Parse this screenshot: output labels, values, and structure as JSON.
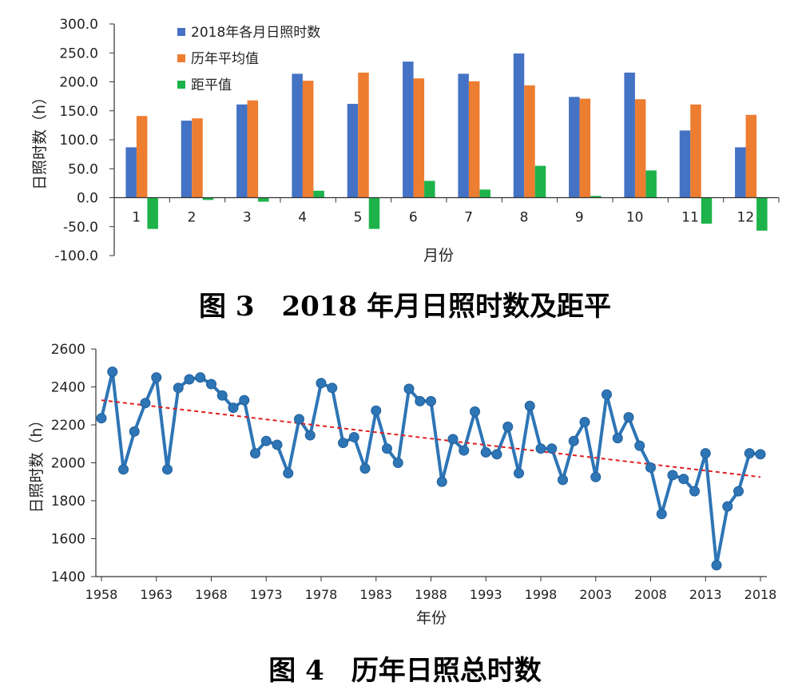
{
  "figures": {
    "fig3_caption": "图 3　2018 年月日照时数及距平",
    "fig4_caption": "图 4　历年日照总时数"
  },
  "colors": {
    "bar_2018": "#4472C4",
    "bar_avg": "#ED7D31",
    "bar_anomaly": "#1DB34A",
    "line": "#2E75B6",
    "trend": "#E02020"
  },
  "chart_data": [
    {
      "type": "bar",
      "title": "",
      "xlabel": "月份",
      "ylabel": "日照时数（h）",
      "ylim": [
        -100,
        300
      ],
      "yticks": [
        "300.0",
        "250.0",
        "200.0",
        "150.0",
        "100.0",
        "50.0",
        "0.0",
        "-50.0",
        "-100.0"
      ],
      "ytick_values": [
        300,
        250,
        200,
        150,
        100,
        50,
        0,
        -50,
        -100
      ],
      "categories": [
        "1",
        "2",
        "3",
        "4",
        "5",
        "6",
        "7",
        "8",
        "9",
        "10",
        "11",
        "12"
      ],
      "legend_position": "top-left",
      "series": [
        {
          "name": "2018年各月日照时数",
          "values": [
            87,
            133,
            161,
            214,
            162,
            235,
            214,
            249,
            174,
            216,
            116,
            87
          ]
        },
        {
          "name": "历年平均值",
          "values": [
            141,
            137,
            168,
            202,
            216,
            206,
            201,
            194,
            171,
            170,
            161,
            143
          ]
        },
        {
          "name": "距平值",
          "values": [
            -54,
            -4,
            -7,
            12,
            -54,
            29,
            14,
            55,
            3,
            47,
            -45,
            -57
          ]
        }
      ]
    },
    {
      "type": "line",
      "title": "",
      "xlabel": "年份",
      "ylabel": "日照时数（h）",
      "ylim": [
        1400,
        2600
      ],
      "yticks": [
        "2600",
        "2400",
        "2200",
        "2000",
        "1800",
        "1600",
        "1400"
      ],
      "ytick_values": [
        2600,
        2400,
        2200,
        2000,
        1800,
        1600,
        1400
      ],
      "xticks": [
        "1958",
        "1963",
        "1968",
        "1973",
        "1978",
        "1983",
        "1988",
        "1993",
        "1998",
        "2003",
        "2008",
        "2013",
        "2018"
      ],
      "xtick_values": [
        1958,
        1963,
        1968,
        1973,
        1978,
        1983,
        1988,
        1993,
        1998,
        2003,
        2008,
        2013,
        2018
      ],
      "x": [
        1958,
        1959,
        1960,
        1961,
        1962,
        1963,
        1964,
        1965,
        1966,
        1967,
        1968,
        1969,
        1970,
        1971,
        1972,
        1973,
        1974,
        1975,
        1976,
        1977,
        1978,
        1979,
        1980,
        1981,
        1982,
        1983,
        1984,
        1985,
        1986,
        1987,
        1988,
        1989,
        1990,
        1991,
        1992,
        1993,
        1994,
        1995,
        1996,
        1997,
        1998,
        1999,
        2000,
        2001,
        2002,
        2003,
        2004,
        2005,
        2006,
        2007,
        2008,
        2009,
        2010,
        2011,
        2012,
        2013,
        2014,
        2015,
        2016,
        2017,
        2018
      ],
      "values": [
        2235,
        2480,
        1965,
        2165,
        2315,
        2450,
        1965,
        2395,
        2440,
        2450,
        2415,
        2355,
        2290,
        2330,
        2050,
        2115,
        2095,
        1945,
        2230,
        2145,
        2420,
        2395,
        2105,
        2135,
        1970,
        2275,
        2075,
        2000,
        2390,
        2325,
        2325,
        1900,
        2125,
        2065,
        2270,
        2055,
        2045,
        2190,
        1945,
        2300,
        2075,
        2075,
        1910,
        2115,
        2215,
        1925,
        2360,
        2130,
        2240,
        2090,
        1975,
        1730,
        1935,
        1915,
        1850,
        2050,
        1460,
        1770,
        1850,
        2050,
        2045
      ],
      "trend": {
        "x": [
          1958,
          2018
        ],
        "y": [
          2330,
          1925
        ]
      }
    }
  ]
}
